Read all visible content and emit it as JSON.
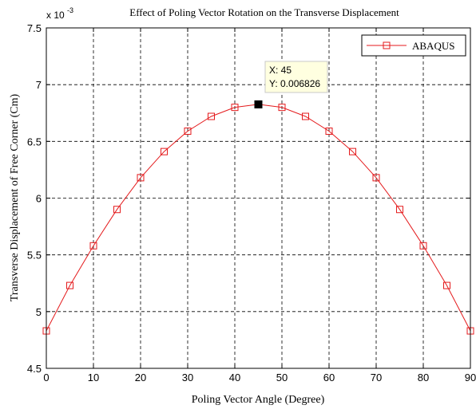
{
  "chart_data": {
    "type": "line",
    "title": "Effect of Poling Vector Rotation on the Transverse Displacement",
    "xlabel": "Poling Vector Angle (Degree)",
    "ylabel": "Transverse Displacement of Free Corner (Cm)",
    "y_exponent_label": "x 10",
    "y_exponent_power": "-3",
    "xlim": [
      0,
      90
    ],
    "ylim": [
      0.0045,
      0.0075
    ],
    "x_ticks": [
      0,
      10,
      20,
      30,
      40,
      50,
      60,
      70,
      80,
      90
    ],
    "x_tick_labels": [
      "0",
      "10",
      "20",
      "30",
      "40",
      "50",
      "60",
      "70",
      "80",
      "90"
    ],
    "y_ticks": [
      0.0045,
      0.005,
      0.0055,
      0.006,
      0.0065,
      0.007,
      0.0075
    ],
    "y_tick_labels": [
      "4.5",
      "5",
      "5.5",
      "6",
      "6.5",
      "7",
      "7.5"
    ],
    "grid": true,
    "legend_position": "top-right",
    "series": [
      {
        "name": "ABAQUS",
        "color": "#e41a1c",
        "marker": "square",
        "x": [
          0,
          5,
          10,
          15,
          20,
          25,
          30,
          35,
          40,
          45,
          50,
          55,
          60,
          65,
          70,
          75,
          80,
          85,
          90
        ],
        "y": [
          0.00483,
          0.00523,
          0.00558,
          0.0059,
          0.00618,
          0.00641,
          0.00659,
          0.00672,
          0.0068,
          0.006826,
          0.0068,
          0.00672,
          0.00659,
          0.00641,
          0.00618,
          0.0059,
          0.00558,
          0.00523,
          0.00483
        ]
      }
    ],
    "datatip": {
      "x": 45,
      "y": 0.006826,
      "x_text": "X: 45",
      "y_text": "Y: 0.006826"
    }
  }
}
